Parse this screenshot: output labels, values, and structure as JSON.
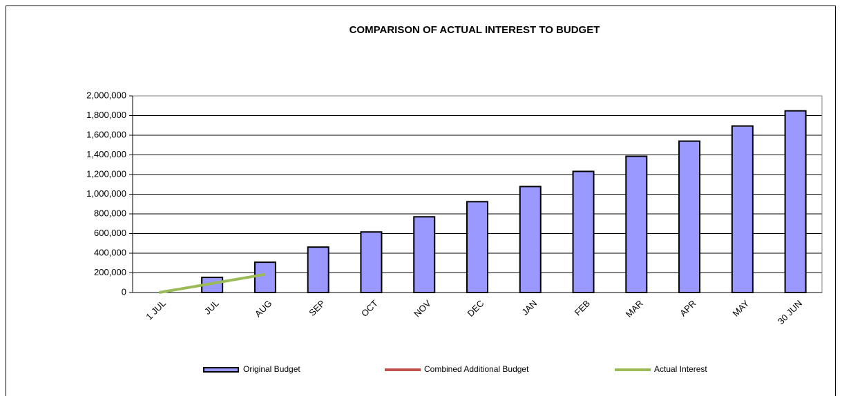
{
  "chart_data": {
    "type": "bar",
    "title": "COMPARISON OF ACTUAL INTEREST TO BUDGET",
    "categories": [
      "1 JUL",
      "JUL",
      "AUG",
      "SEP",
      "OCT",
      "NOV",
      "DEC",
      "JAN",
      "FEB",
      "MAR",
      "APR",
      "MAY",
      "30 JUN"
    ],
    "series": [
      {
        "name": "Original Budget",
        "color": "#9999ff",
        "mark": "bar",
        "values": [
          0,
          154000,
          308000,
          462000,
          616000,
          770000,
          924000,
          1078000,
          1232000,
          1386000,
          1540000,
          1694000,
          1848000
        ]
      },
      {
        "name": "Combined Additional Budget",
        "color": "#c0504d",
        "mark": "line",
        "values": [
          null,
          null,
          null,
          null,
          null,
          null,
          null,
          null,
          null,
          null,
          null,
          null,
          null
        ]
      },
      {
        "name": "Actual Interest",
        "color": "#9bbb59",
        "mark": "line",
        "values": [
          0,
          92000,
          185000,
          null,
          null,
          null,
          null,
          null,
          null,
          null,
          null,
          null,
          null
        ]
      }
    ],
    "ylim": [
      0,
      2000000
    ],
    "yticks": [
      0,
      {
        "value": 200000,
        "label": "200,000"
      },
      {
        "value": 400000,
        "label": "400,000"
      },
      {
        "value": 600000,
        "label": "600,000"
      },
      {
        "value": 800000,
        "label": "800,000"
      },
      {
        "value": 1000000,
        "label": "1,000,000"
      },
      {
        "value": 1200000,
        "label": "1,200,000"
      },
      {
        "value": 1400000,
        "label": "1,400,000"
      },
      {
        "value": 1600000,
        "label": "1,600,000"
      },
      {
        "value": 1800000,
        "label": "1,800,000"
      },
      {
        "value": 2000000,
        "label": "2,000,000"
      }
    ],
    "grid": true,
    "legend": "bottom"
  }
}
